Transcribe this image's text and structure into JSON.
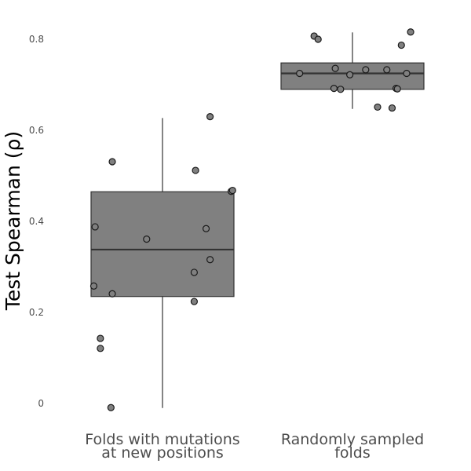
{
  "chart_data": {
    "type": "boxplot",
    "title": "",
    "xlabel": "",
    "ylabel": "Test Spearman (ρ)",
    "ylim": [
      -0.06,
      0.88
    ],
    "yticks": [
      0,
      0.2,
      0.4,
      0.6,
      0.8
    ],
    "ytick_labels": [
      "0",
      "0.2",
      "0.4",
      "0.6",
      "0.8"
    ],
    "grid": false,
    "legend": "none",
    "colors": {
      "box_fill": "#808080",
      "box_edge": "#333333",
      "point_fill": "#808080",
      "point_edge": "#1a1a1a"
    },
    "categories": [
      {
        "label_lines": [
          "Folds with mutations",
          "at new positions"
        ]
      },
      {
        "label_lines": [
          "Randomly sampled",
          "folds"
        ]
      }
    ],
    "boxes": [
      {
        "q1": 0.235,
        "median": 0.338,
        "q3": 0.465,
        "whisker_low": -0.01,
        "whisker_high": 0.627
      },
      {
        "q1": 0.69,
        "median": 0.725,
        "q3": 0.748,
        "whisker_low": 0.647,
        "whisker_high": 0.815
      }
    ],
    "points": [
      [
        {
          "jitter": -0.51,
          "y": 0.388
        },
        {
          "jitter": -0.52,
          "y": 0.258
        },
        {
          "jitter": -0.47,
          "y": 0.143
        },
        {
          "jitter": -0.47,
          "y": 0.121
        },
        {
          "jitter": -0.39,
          "y": -0.009
        },
        {
          "jitter": -0.38,
          "y": 0.531
        },
        {
          "jitter": -0.38,
          "y": 0.241
        },
        {
          "jitter": -0.12,
          "y": 0.361
        },
        {
          "jitter": 0.25,
          "y": 0.512
        },
        {
          "jitter": 0.24,
          "y": 0.288
        },
        {
          "jitter": 0.24,
          "y": 0.224
        },
        {
          "jitter": 0.33,
          "y": 0.384
        },
        {
          "jitter": 0.36,
          "y": 0.63
        },
        {
          "jitter": 0.36,
          "y": 0.316
        },
        {
          "jitter": 0.52,
          "y": 0.466
        },
        {
          "jitter": 0.53,
          "y": 0.468
        }
      ],
      [
        {
          "jitter": -0.4,
          "y": 0.725
        },
        {
          "jitter": -0.29,
          "y": 0.807
        },
        {
          "jitter": -0.26,
          "y": 0.8
        },
        {
          "jitter": -0.13,
          "y": 0.736
        },
        {
          "jitter": -0.14,
          "y": 0.692
        },
        {
          "jitter": -0.09,
          "y": 0.69
        },
        {
          "jitter": -0.02,
          "y": 0.722
        },
        {
          "jitter": 0.1,
          "y": 0.733
        },
        {
          "jitter": 0.19,
          "y": 0.651
        },
        {
          "jitter": 0.26,
          "y": 0.733
        },
        {
          "jitter": 0.3,
          "y": 0.649
        },
        {
          "jitter": 0.33,
          "y": 0.692
        },
        {
          "jitter": 0.34,
          "y": 0.691
        },
        {
          "jitter": 0.37,
          "y": 0.787
        },
        {
          "jitter": 0.41,
          "y": 0.725
        },
        {
          "jitter": 0.44,
          "y": 0.816
        }
      ]
    ]
  }
}
